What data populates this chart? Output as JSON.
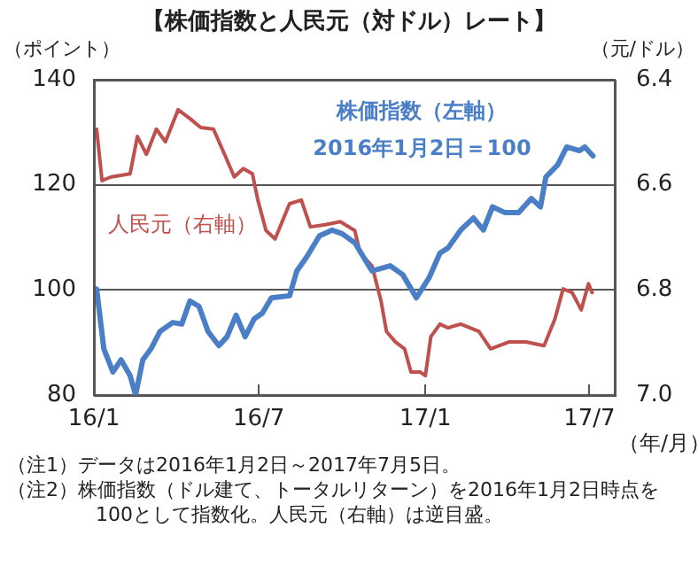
{
  "chart_data": {
    "type": "line",
    "title": "【株価指数と人民元（対ドル）レート】",
    "ylabel": "（ポイント）",
    "y2label": "（元/ドル）",
    "xlabel": "（年/月）",
    "annotations": [
      "2016年1月2日＝100",
      "（注1）データは2016年1月2日～2017年7月5日。",
      "（注2）株価指数（ドル建て、トータルリターン）を2016年1月2日時点を100として指数化。人民元（右軸）は逆目盛。"
    ],
    "xlim": [
      "2016-01-01",
      "2017-07-29"
    ],
    "xticks": [
      {
        "value": "2016-01",
        "label": "16/1"
      },
      {
        "value": "2016-07",
        "label": "16/7"
      },
      {
        "value": "2017-01",
        "label": "17/1"
      },
      {
        "value": "2017-07",
        "label": "17/7"
      }
    ],
    "ylim": [
      80,
      140
    ],
    "yticks": [
      80,
      100,
      120,
      140
    ],
    "y2lim": [
      7.0,
      6.4
    ],
    "y2ticks": [
      {
        "value": 6.4,
        "label": "6.4"
      },
      {
        "value": 6.6,
        "label": "6.6"
      },
      {
        "value": 6.8,
        "label": "6.8"
      },
      {
        "value": 7.0,
        "label": "7.0"
      }
    ],
    "grid": "y",
    "legend": false,
    "marker": "none",
    "line_style": "solid",
    "series": [
      {
        "name": "株価指数（左軸）",
        "color": "#4a7fc8",
        "x": [
          "2016-01-04",
          "2016-01-12",
          "2016-01-22",
          "2016-01-31",
          "2016-02-10",
          "2016-02-16",
          "2016-02-24",
          "2016-03-04",
          "2016-03-14",
          "2016-03-28",
          "2016-04-07",
          "2016-04-16",
          "2016-04-26",
          "2016-05-06",
          "2016-05-18",
          "2016-05-27",
          "2016-06-06",
          "2016-06-16",
          "2016-06-26",
          "2016-07-05",
          "2016-07-15",
          "2016-08-04",
          "2016-08-12",
          "2016-08-23",
          "2016-09-06",
          "2016-09-20",
          "2016-10-01",
          "2016-10-15",
          "2016-11-03",
          "2016-11-23",
          "2016-12-07",
          "2016-12-22",
          "2017-01-05",
          "2017-01-17",
          "2017-01-26",
          "2017-02-09",
          "2017-02-23",
          "2017-03-06",
          "2017-03-16",
          "2017-03-30",
          "2017-04-14",
          "2017-04-28",
          "2017-05-08",
          "2017-05-14",
          "2017-05-27",
          "2017-06-06",
          "2017-06-20",
          "2017-06-26",
          "2017-07-05"
        ],
        "values": [
          100.2,
          88.8,
          84.4,
          86.7,
          83.7,
          80,
          86.7,
          88.8,
          92.1,
          93.8,
          93.5,
          97.9,
          96.9,
          92.1,
          89.4,
          91.1,
          95.2,
          91.1,
          94.5,
          95.6,
          98.5,
          98.9,
          103.6,
          106.3,
          110.3,
          111.4,
          110.7,
          109,
          103.6,
          104.6,
          102.9,
          98.5,
          102.3,
          107,
          108,
          111.4,
          113.7,
          111.4,
          115.8,
          114.7,
          114.7,
          117.4,
          115.8,
          121.5,
          123.8,
          127.2,
          126.5,
          127.2,
          125.5
        ]
      },
      {
        "name": "人民元（右軸）",
        "color": "#c0504d",
        "axis": "y2",
        "x": [
          "2016-01-04",
          "2016-01-10",
          "2016-01-20",
          "2016-02-10",
          "2016-02-18",
          "2016-02-28",
          "2016-03-10",
          "2016-03-20",
          "2016-04-03",
          "2016-04-16",
          "2016-04-28",
          "2016-05-12",
          "2016-05-25",
          "2016-06-04",
          "2016-06-14",
          "2016-06-24",
          "2016-06-30",
          "2016-07-09",
          "2016-07-19",
          "2016-08-04",
          "2016-08-17",
          "2016-08-27",
          "2016-09-12",
          "2016-09-29",
          "2016-10-15",
          "2016-10-21",
          "2016-11-03",
          "2016-11-13",
          "2016-11-19",
          "2016-11-29",
          "2016-12-09",
          "2016-12-16",
          "2016-12-26",
          "2017-01-01",
          "2017-01-07",
          "2017-01-17",
          "2017-01-26",
          "2017-02-09",
          "2017-03-01",
          "2017-03-14",
          "2017-04-03",
          "2017-04-22",
          "2017-05-12",
          "2017-05-24",
          "2017-06-02",
          "2017-06-12",
          "2017-06-22",
          "2017-06-30",
          "2017-07-04"
        ],
        "values": [
          6.494,
          6.592,
          6.585,
          6.579,
          6.508,
          6.542,
          6.494,
          6.518,
          6.457,
          6.474,
          6.491,
          6.494,
          6.545,
          6.585,
          6.569,
          6.579,
          6.629,
          6.687,
          6.703,
          6.636,
          6.629,
          6.68,
          6.676,
          6.67,
          6.687,
          6.73,
          6.754,
          6.821,
          6.879,
          6.899,
          6.912,
          6.956,
          6.956,
          6.963,
          6.889,
          6.865,
          6.872,
          6.865,
          6.879,
          6.912,
          6.899,
          6.899,
          6.906,
          6.855,
          6.798,
          6.805,
          6.838,
          6.788,
          6.805
        ]
      }
    ]
  }
}
